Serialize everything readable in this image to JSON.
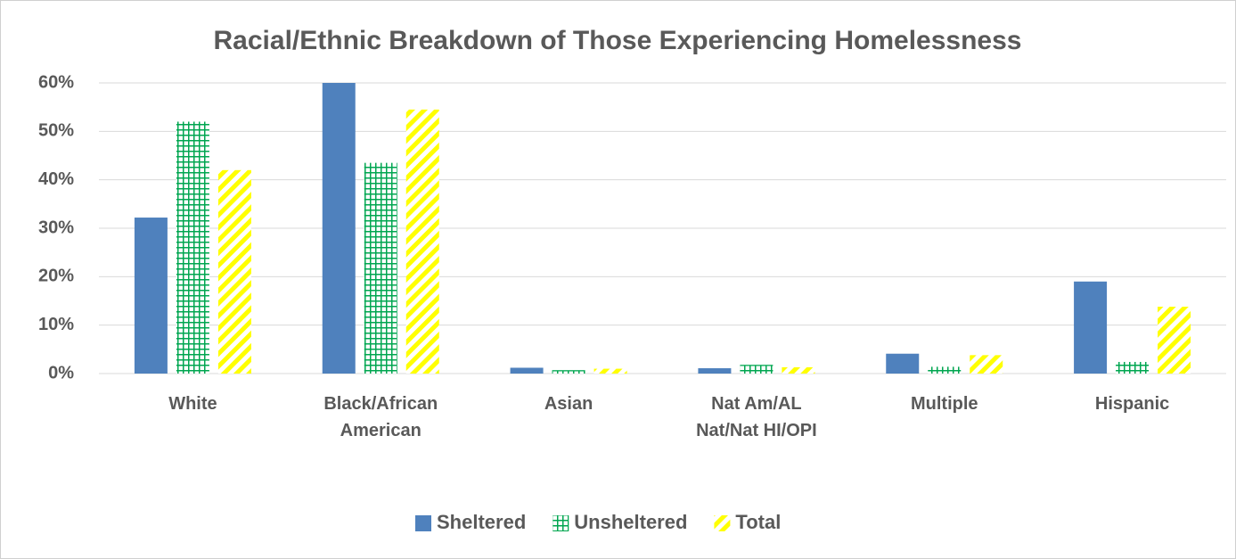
{
  "chart_data": {
    "type": "bar",
    "title": "Racial/Ethnic Breakdown of Those Experiencing Homelessness",
    "categories": [
      "White",
      "Black/African American",
      "Asian",
      "Nat Am/AL Nat/Nat HI/OPI",
      "Multiple",
      "Hispanic"
    ],
    "series": [
      {
        "name": "Sheltered",
        "color": "#4f81bd",
        "pattern": "solid",
        "values": [
          32.2,
          60,
          1.2,
          1.1,
          4.1,
          19
        ]
      },
      {
        "name": "Unsheltered",
        "color": "#00a650",
        "pattern": "grid",
        "values": [
          52,
          43.5,
          0.7,
          1.8,
          1.4,
          2.4
        ]
      },
      {
        "name": "Total",
        "color": "#ffff00",
        "pattern": "stripes",
        "values": [
          42,
          54.5,
          1.0,
          1.3,
          3.8,
          13.8
        ]
      }
    ],
    "ylim": [
      0,
      60
    ],
    "yticks": [
      {
        "value": 0,
        "label": "0%"
      },
      {
        "value": 10,
        "label": "10%"
      },
      {
        "value": 20,
        "label": "20%"
      },
      {
        "value": 30,
        "label": "30%"
      },
      {
        "value": 40,
        "label": "40%"
      },
      {
        "value": 50,
        "label": "50%"
      },
      {
        "value": 60,
        "label": "60%"
      }
    ],
    "grid": true,
    "legend": "bottom"
  }
}
